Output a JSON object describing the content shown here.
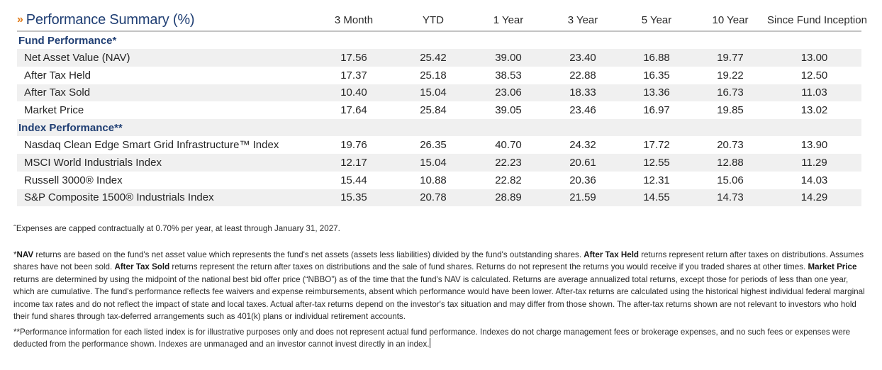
{
  "table": {
    "title_marker": "»",
    "title": "Performance Summary (%)",
    "columns": [
      "3 Month",
      "YTD",
      "1 Year",
      "3 Year",
      "5 Year",
      "10 Year",
      "Since Fund Inception"
    ],
    "fund_section": {
      "label": "Fund Performance*",
      "rows": [
        {
          "label": "Net Asset Value (NAV)",
          "values": [
            "17.56",
            "25.42",
            "39.00",
            "23.40",
            "16.88",
            "19.77",
            "13.00"
          ]
        },
        {
          "label": "After Tax Held",
          "values": [
            "17.37",
            "25.18",
            "38.53",
            "22.88",
            "16.35",
            "19.22",
            "12.50"
          ]
        },
        {
          "label": "After Tax Sold",
          "values": [
            "10.40",
            "15.04",
            "23.06",
            "18.33",
            "13.36",
            "16.73",
            "11.03"
          ]
        },
        {
          "label": "Market Price",
          "values": [
            "17.64",
            "25.84",
            "39.05",
            "23.46",
            "16.97",
            "19.85",
            "13.02"
          ]
        }
      ]
    },
    "index_section": {
      "label": "Index Performance**",
      "rows": [
        {
          "label": "Nasdaq Clean Edge Smart Grid Infrastructure™ Index",
          "values": [
            "19.76",
            "26.35",
            "40.70",
            "24.32",
            "17.72",
            "20.73",
            "13.90"
          ]
        },
        {
          "label": "MSCI World Industrials Index",
          "values": [
            "12.17",
            "15.04",
            "22.23",
            "20.61",
            "12.55",
            "12.88",
            "11.29"
          ]
        },
        {
          "label": "Russell 3000® Index",
          "values": [
            "15.44",
            "10.88",
            "22.82",
            "20.36",
            "12.31",
            "15.06",
            "14.03"
          ]
        },
        {
          "label": "S&P Composite 1500® Industrials Index",
          "values": [
            "15.35",
            "20.78",
            "28.89",
            "21.59",
            "14.55",
            "14.73",
            "14.29"
          ]
        }
      ]
    }
  },
  "notes": {
    "expense": "ˆExpenses are capped contractually at 0.70% per year, at least through January 31, 2027.",
    "nav": {
      "prefix": "*",
      "nav_term": "NAV",
      "nav_text": " returns are based on the fund's net asset value which represents the fund's net assets (assets less liabilities) divided by the fund's outstanding shares. ",
      "held_term": "After Tax Held",
      "held_text": " returns represent return after taxes on distributions. Assumes shares have not been sold. ",
      "sold_term": "After Tax Sold",
      "sold_text": " returns represent the return after taxes on distributions and the sale of fund shares. Returns do not represent the returns you would receive if you traded shares at other times. ",
      "market_term": "Market Price",
      "market_text": " returns are determined by using the midpoint of the national best bid offer price (“NBBO”) as of the time that the fund's NAV is calculated. Returns are average annualized total returns, except those for periods of less than one year, which are cumulative. The fund's performance reflects fee waivers and expense reimbursements, absent which performance would have been lower. After-tax returns are calculated using the historical highest individual federal marginal income tax rates and do not reflect the impact of state and local taxes. Actual after-tax returns depend on the investor's tax situation and may differ from those shown. The after-tax returns shown are not relevant to investors who hold their fund shares through tax-deferred arrangements such as 401(k) plans or individual retirement accounts."
    },
    "index": "**Performance information for each listed index is for illustrative purposes only and does not represent actual fund performance. Indexes do not charge management fees or brokerage expenses, and no such fees or expenses were deducted from the performance shown. Indexes are unmanaged and an investor cannot invest directly in an index."
  },
  "colors": {
    "title": "#1f3e73",
    "section_label": "#1f3e73",
    "marker": "#e07b1a",
    "row_shade": "#f0f0f0",
    "header_rule": "#c4c4c4"
  }
}
